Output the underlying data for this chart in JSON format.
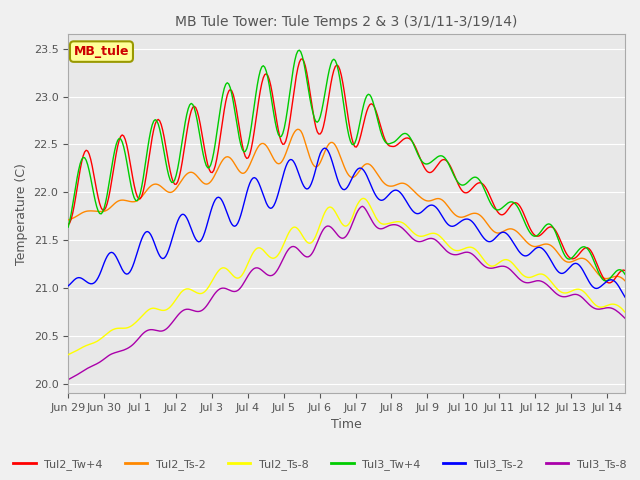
{
  "title": "MB Tule Tower: Tule Temps 2 & 3 (3/1/11-3/19/14)",
  "xlabel": "Time",
  "ylabel": "Temperature (C)",
  "legend_label": "MB_tule",
  "x_tick_labels": [
    "Jun 29",
    "Jun 30",
    "Jul 1",
    "Jul 2",
    "Jul 3",
    "Jul 4",
    "Jul 5",
    "Jul 6",
    "Jul 7",
    "Jul 8",
    "Jul 9",
    "Jul 10",
    "Jul 11",
    "Jul 12",
    "Jul 13",
    "Jul 14"
  ],
  "ylim": [
    19.9,
    23.65
  ],
  "series_colors": {
    "Tul2_Tw+4": "#ff0000",
    "Tul2_Ts-2": "#ff8800",
    "Tul2_Ts-8": "#ffff00",
    "Tul3_Tw+4": "#00cc00",
    "Tul3_Ts-2": "#0000ff",
    "Tul3_Ts-8": "#aa00aa"
  },
  "background_color": "#f0f0f0",
  "plot_bg_color": "#e8e8e8",
  "grid_color": "#ffffff",
  "title_color": "#555555",
  "legend_box_color": "#ffff99",
  "legend_text_color": "#cc0000"
}
